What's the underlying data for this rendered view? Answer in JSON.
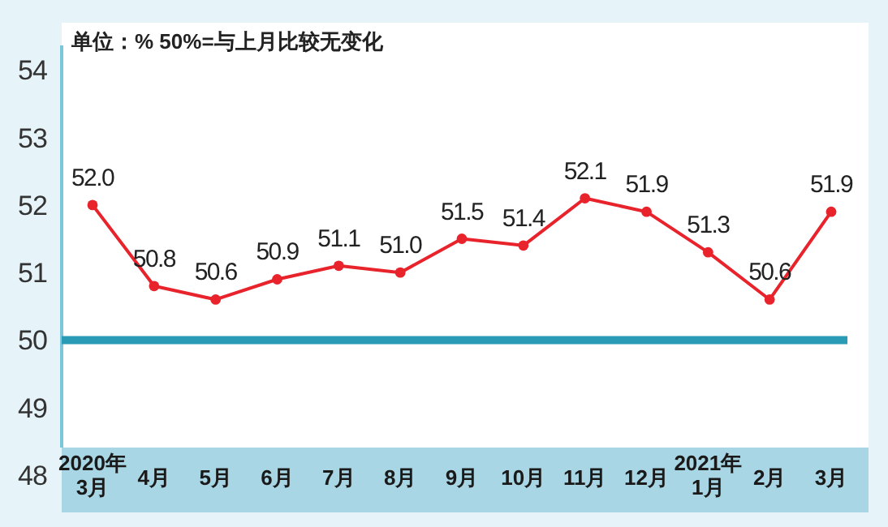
{
  "chart_data": {
    "type": "line",
    "title": "单位：%  50%=与上月比较无变化",
    "categories": [
      "2020年\n3月",
      "4月",
      "5月",
      "6月",
      "7月",
      "8月",
      "9月",
      "10月",
      "11月",
      "12月",
      "2021年\n1月",
      "2月",
      "3月"
    ],
    "series": [
      {
        "color": "#e8232b",
        "values": [
          52.0,
          50.8,
          50.6,
          50.9,
          51.1,
          51.0,
          51.5,
          51.4,
          52.1,
          51.9,
          51.3,
          50.6,
          51.9
        ],
        "value_labels": [
          "52.0",
          "50.8",
          "50.6",
          "50.9",
          "51.1",
          "51.0",
          "51.5",
          "51.4",
          "52.1",
          "51.9",
          "51.3",
          "50.6",
          "51.9"
        ]
      }
    ],
    "ylim": [
      48,
      54.7
    ],
    "yticks": [
      48,
      49,
      50,
      51,
      52,
      53,
      54
    ],
    "marker": "circle",
    "grid": false,
    "ref_lines": [
      {
        "axis": "y",
        "value": 50,
        "color": "#2a9bb5"
      }
    ]
  }
}
